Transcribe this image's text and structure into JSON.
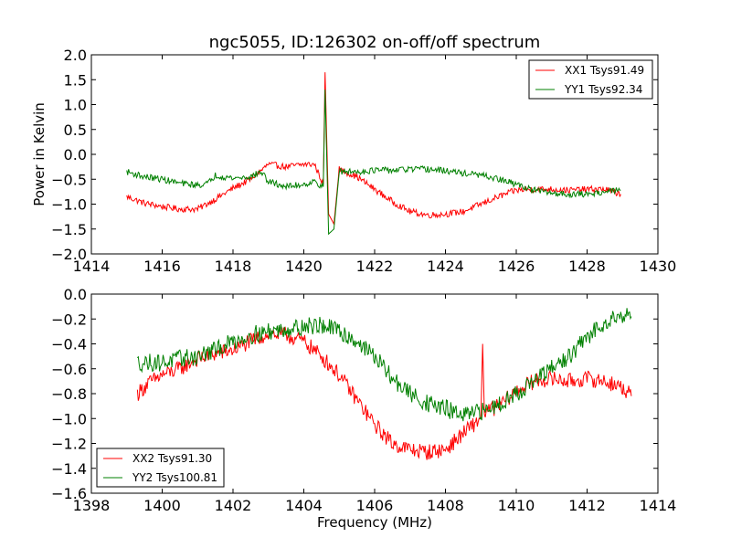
{
  "chart_data": {
    "title": "ngc5055, ID:126302 on-off/off spectrum",
    "panels": [
      {
        "type": "line",
        "ylabel": "Power in Kelvin",
        "xlabel": "",
        "xlim": [
          1414,
          1430
        ],
        "ylim": [
          -2.0,
          2.0
        ],
        "xticks": [
          1414,
          1416,
          1418,
          1420,
          1422,
          1424,
          1426,
          1428,
          1430
        ],
        "xtick_labels": [
          "1414",
          "1416",
          "1418",
          "1420",
          "1422",
          "1424",
          "1426",
          "1428",
          "1430"
        ],
        "yticks": [
          -2.0,
          -1.5,
          -1.0,
          -0.5,
          0.0,
          0.5,
          1.0,
          1.5,
          2.0
        ],
        "ytick_labels": [
          "−2.0",
          "−1.5",
          "−1.0",
          "−0.5",
          "0.0",
          "0.5",
          "1.0",
          "1.5",
          "2.0"
        ],
        "legend": "top-right",
        "series": [
          {
            "name": "XX1 Tsys91.49",
            "color": "#ff0000",
            "x": [
              1415.0,
              1415.5,
              1416.0,
              1416.5,
              1417.0,
              1417.5,
              1418.0,
              1418.5,
              1419.0,
              1419.5,
              1420.0,
              1420.3,
              1420.55,
              1420.6,
              1420.7,
              1420.85,
              1421.0,
              1421.5,
              1422.0,
              1422.5,
              1423.0,
              1423.5,
              1424.0,
              1424.5,
              1425.0,
              1425.5,
              1426.0,
              1426.5,
              1427.0,
              1427.5,
              1428.0,
              1428.5,
              1428.95
            ],
            "y": [
              -0.85,
              -0.98,
              -1.05,
              -1.1,
              -1.1,
              -0.9,
              -0.68,
              -0.5,
              -0.2,
              -0.25,
              -0.2,
              -0.2,
              -0.6,
              1.65,
              -1.2,
              -1.4,
              -0.3,
              -0.45,
              -0.7,
              -0.95,
              -1.15,
              -1.22,
              -1.2,
              -1.15,
              -1.0,
              -0.85,
              -0.72,
              -0.7,
              -0.7,
              -0.72,
              -0.7,
              -0.7,
              -0.8
            ],
            "noise": 0.04
          },
          {
            "name": "YY1 Tsys92.34",
            "color": "#008000",
            "x": [
              1415.0,
              1415.5,
              1416.0,
              1416.5,
              1417.0,
              1417.3,
              1417.5,
              1418.0,
              1418.5,
              1418.8,
              1419.0,
              1419.5,
              1420.0,
              1420.3,
              1420.55,
              1420.6,
              1420.7,
              1420.85,
              1421.0,
              1421.5,
              1422.0,
              1422.5,
              1423.0,
              1423.5,
              1424.0,
              1424.5,
              1425.0,
              1425.5,
              1426.0,
              1426.5,
              1427.0,
              1427.5,
              1428.0,
              1428.5,
              1428.95
            ],
            "y": [
              -0.35,
              -0.45,
              -0.5,
              -0.58,
              -0.62,
              -0.58,
              -0.42,
              -0.48,
              -0.45,
              -0.35,
              -0.55,
              -0.65,
              -0.6,
              -0.55,
              -0.65,
              1.3,
              -1.6,
              -1.5,
              -0.35,
              -0.35,
              -0.32,
              -0.32,
              -0.3,
              -0.3,
              -0.33,
              -0.38,
              -0.42,
              -0.5,
              -0.6,
              -0.72,
              -0.78,
              -0.8,
              -0.8,
              -0.75,
              -0.72
            ],
            "noise": 0.04
          }
        ]
      },
      {
        "type": "line",
        "ylabel": "",
        "xlabel": "Frequency (MHz)",
        "xlim": [
          1398,
          1414
        ],
        "ylim": [
          -1.6,
          0.0
        ],
        "xticks": [
          1398,
          1400,
          1402,
          1404,
          1406,
          1408,
          1410,
          1412,
          1414
        ],
        "xtick_labels": [
          "1398",
          "1400",
          "1402",
          "1404",
          "1406",
          "1408",
          "1410",
          "1412",
          "1414"
        ],
        "yticks": [
          -1.6,
          -1.4,
          -1.2,
          -1.0,
          -0.8,
          -0.6,
          -0.4,
          -0.2,
          0.0
        ],
        "ytick_labels": [
          "−1.6",
          "−1.4",
          "−1.2",
          "−1.0",
          "−0.8",
          "−0.6",
          "−0.4",
          "−0.2",
          "0.0"
        ],
        "legend": "bottom-left",
        "series": [
          {
            "name": "XX2 Tsys91.30",
            "color": "#ff0000",
            "x": [
              1399.3,
              1399.6,
              1400.0,
              1400.5,
              1401.0,
              1401.5,
              1402.0,
              1402.5,
              1403.0,
              1403.5,
              1404.0,
              1404.5,
              1405.0,
              1405.5,
              1406.0,
              1406.5,
              1407.0,
              1407.5,
              1408.0,
              1408.5,
              1409.0,
              1409.05,
              1409.1,
              1409.5,
              1410.0,
              1410.5,
              1411.0,
              1411.5,
              1412.0,
              1412.5,
              1413.0,
              1413.25
            ],
            "y": [
              -0.8,
              -0.72,
              -0.65,
              -0.6,
              -0.52,
              -0.48,
              -0.45,
              -0.38,
              -0.32,
              -0.33,
              -0.38,
              -0.5,
              -0.65,
              -0.85,
              -1.05,
              -1.2,
              -1.25,
              -1.27,
              -1.25,
              -1.12,
              -1.0,
              -0.4,
              -0.95,
              -0.9,
              -0.78,
              -0.7,
              -0.68,
              -0.7,
              -0.68,
              -0.7,
              -0.75,
              -0.82
            ],
            "noise": 0.04
          },
          {
            "name": "YY2 Tsys100.81",
            "color": "#008000",
            "x": [
              1399.3,
              1399.6,
              1400.0,
              1400.5,
              1401.0,
              1401.5,
              1402.0,
              1402.5,
              1403.0,
              1403.5,
              1404.0,
              1404.5,
              1405.0,
              1405.5,
              1406.0,
              1406.5,
              1407.0,
              1407.5,
              1408.0,
              1408.5,
              1409.0,
              1409.5,
              1410.0,
              1410.5,
              1411.0,
              1411.5,
              1412.0,
              1412.5,
              1413.0,
              1413.25
            ],
            "y": [
              -0.55,
              -0.55,
              -0.55,
              -0.52,
              -0.5,
              -0.45,
              -0.38,
              -0.33,
              -0.3,
              -0.28,
              -0.26,
              -0.25,
              -0.3,
              -0.38,
              -0.5,
              -0.68,
              -0.8,
              -0.88,
              -0.92,
              -0.98,
              -0.95,
              -0.88,
              -0.8,
              -0.7,
              -0.6,
              -0.5,
              -0.35,
              -0.22,
              -0.16,
              -0.18
            ],
            "noise": 0.045
          }
        ]
      }
    ]
  }
}
